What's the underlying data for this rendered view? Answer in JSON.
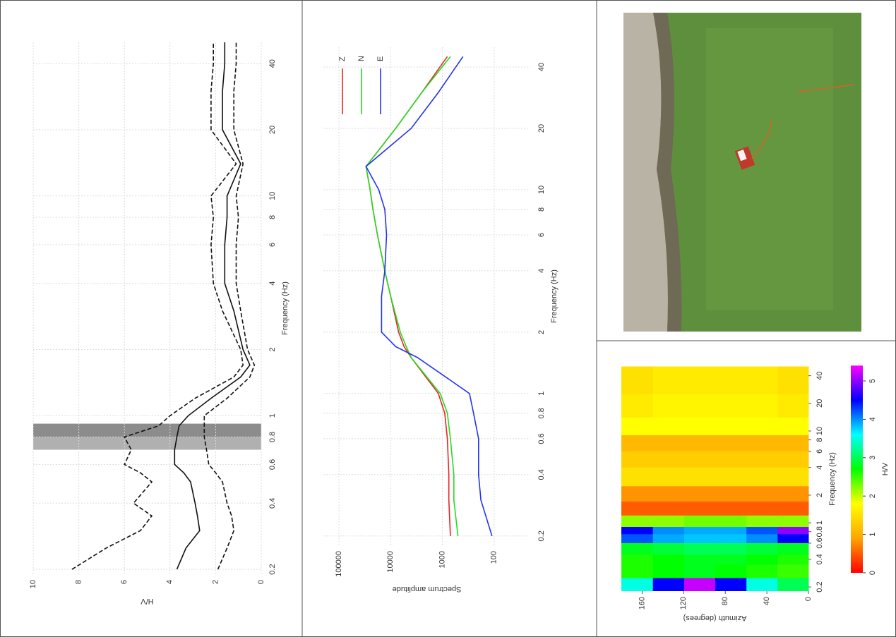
{
  "chart_data": [
    {
      "type": "line",
      "xlabel": "Frequency (Hz)",
      "ylabel": "H/V",
      "log_x": true,
      "grid": true,
      "xlim": [
        0.19,
        50
      ],
      "xticks": [
        0.2,
        0.4,
        0.6,
        0.8,
        1,
        2,
        4,
        6,
        8,
        10,
        20,
        40
      ],
      "ylim": [
        0,
        10
      ],
      "yticks": [
        0,
        2,
        4,
        6,
        8,
        10
      ],
      "shaded_ranges": [
        {
          "range": [
            0.7,
            0.8
          ],
          "color": "#b0b0b0"
        },
        {
          "range": [
            0.8,
            0.92
          ],
          "color": "#8c8c8c"
        }
      ],
      "x": [
        0.2,
        0.25,
        0.3,
        0.35,
        0.4,
        0.5,
        0.55,
        0.6,
        0.7,
        0.8,
        0.9,
        1,
        1.2,
        1.5,
        1.7,
        2,
        3,
        4,
        6,
        8,
        10,
        14,
        20,
        30,
        40,
        50
      ],
      "series": [
        {
          "color": "#111111",
          "dash": false,
          "values": [
            3.7,
            3.3,
            2.7,
            2.8,
            2.9,
            3.1,
            3.4,
            3.8,
            3.8,
            3.7,
            3.6,
            3.2,
            2.2,
            0.9,
            0.5,
            0.8,
            1.2,
            1.6,
            1.6,
            1.5,
            1.5,
            0.9,
            1.7,
            1.7,
            1.6,
            1.6
          ]
        },
        {
          "color": "#111111",
          "dash": true,
          "values": [
            1.9,
            1.5,
            1.2,
            1.3,
            1.5,
            1.7,
            2.0,
            2.3,
            2.4,
            2.5,
            2.5,
            2.5,
            1.5,
            0.5,
            0.3,
            0.6,
            0.9,
            1.1,
            1.1,
            1.0,
            1.1,
            0.8,
            1.2,
            1.2,
            1.1,
            1.1
          ]
        },
        {
          "color": "#111111",
          "dash": true,
          "values": [
            8.3,
            6.8,
            5.3,
            4.8,
            5.6,
            4.8,
            5.3,
            6.0,
            5.7,
            6.0,
            4.5,
            4.0,
            2.9,
            1.2,
            0.8,
            0.9,
            1.7,
            2.1,
            2.2,
            2.1,
            2.2,
            1.1,
            2.2,
            2.2,
            2.1,
            2.1
          ]
        }
      ]
    },
    {
      "type": "line",
      "xlabel": "Frequency (Hz)",
      "ylabel": "Spectrum amplitude",
      "log_x": true,
      "log_y": true,
      "grid": true,
      "legend": "upper right",
      "xlim": [
        0.18,
        50
      ],
      "xticks": [
        0.2,
        0.4,
        0.6,
        0.8,
        1,
        2,
        4,
        6,
        8,
        10,
        20,
        40
      ],
      "ylim": [
        20,
        200000
      ],
      "yticks": [
        100,
        1000,
        10000,
        100000
      ],
      "x": [
        0.2,
        0.3,
        0.4,
        0.6,
        0.8,
        1,
        1.5,
        1.7,
        2,
        3,
        4,
        6,
        8,
        10,
        13,
        20,
        30,
        45
      ],
      "series": [
        {
          "name": "Z",
          "color": "#ee2222",
          "dash": false,
          "values": [
            700,
            750,
            750,
            800,
            900,
            1200,
            4000,
            5500,
            7000,
            10000,
            13000,
            18000,
            22000,
            25000,
            30000,
            8000,
            2500,
            800
          ]
        },
        {
          "name": "N",
          "color": "#22dd22",
          "dash": false,
          "values": [
            500,
            600,
            600,
            700,
            800,
            1100,
            4000,
            5000,
            6500,
            10000,
            13000,
            18000,
            22000,
            25000,
            30000,
            8000,
            2500,
            700
          ]
        },
        {
          "name": "E",
          "color": "#2233ee",
          "dash": false,
          "values": [
            110,
            180,
            200,
            200,
            250,
            300,
            3000,
            8000,
            15000,
            15000,
            13000,
            12000,
            13000,
            17000,
            30000,
            4000,
            1200,
            400
          ]
        }
      ]
    },
    {
      "type": "heatmap",
      "xlabel": "Frequency (Hz)",
      "ylabel": "Azimuth (degrees)",
      "clabel": "H/V",
      "log_x": true,
      "xlim": [
        0.18,
        50
      ],
      "xticks": [
        0.2,
        0.4,
        0.6,
        0.8,
        1,
        2,
        4,
        6,
        8,
        10,
        20,
        40
      ],
      "ylim": [
        0,
        180
      ],
      "yticks": [
        0,
        40,
        80,
        120,
        160
      ],
      "clim": [
        0,
        5.4
      ],
      "cticks": [
        0,
        1,
        2,
        3,
        4,
        5
      ],
      "colormap": [
        "#ff0000",
        "#ffa500",
        "#ffff00",
        "#00ff00",
        "#00ffff",
        "#0000ff",
        "#ff00ff"
      ],
      "x_edges": [
        0.18,
        0.25,
        0.35,
        0.45,
        0.6,
        0.75,
        0.9,
        1.2,
        1.7,
        2.5,
        4,
        6,
        9,
        14,
        25,
        50
      ],
      "y_edges": [
        0,
        30,
        60,
        90,
        120,
        150,
        180
      ],
      "values": [
        [
          3,
          3.5,
          4.5,
          5.2,
          4.5,
          3.5
        ],
        [
          2.5,
          2.6,
          2.7,
          2.8,
          2.7,
          2.6
        ],
        [
          2.6,
          2.7,
          2.8,
          2.8,
          2.7,
          2.6
        ],
        [
          2.8,
          2.9,
          3,
          3,
          2.9,
          2.8
        ],
        [
          4.5,
          4,
          3.8,
          3.8,
          3.9,
          4.2
        ],
        [
          5,
          4.2,
          3.9,
          3.9,
          4,
          4.5
        ],
        [
          2.2,
          2.2,
          2.3,
          2.3,
          2.2,
          2.2
        ],
        [
          0.5,
          0.5,
          0.5,
          0.5,
          0.5,
          0.5
        ],
        [
          0.8,
          0.8,
          0.8,
          0.8,
          0.8,
          0.8
        ],
        [
          1.5,
          1.5,
          1.5,
          1.5,
          1.5,
          1.5
        ],
        [
          1.3,
          1.3,
          1.3,
          1.3,
          1.3,
          1.3
        ],
        [
          1.1,
          1.1,
          1.1,
          1.1,
          1.1,
          1.1
        ],
        [
          1.8,
          1.8,
          1.8,
          1.8,
          1.8,
          1.8
        ],
        [
          1.6,
          1.7,
          1.7,
          1.7,
          1.7,
          1.6
        ],
        [
          1.5,
          1.6,
          1.6,
          1.6,
          1.6,
          1.5
        ]
      ]
    }
  ]
}
